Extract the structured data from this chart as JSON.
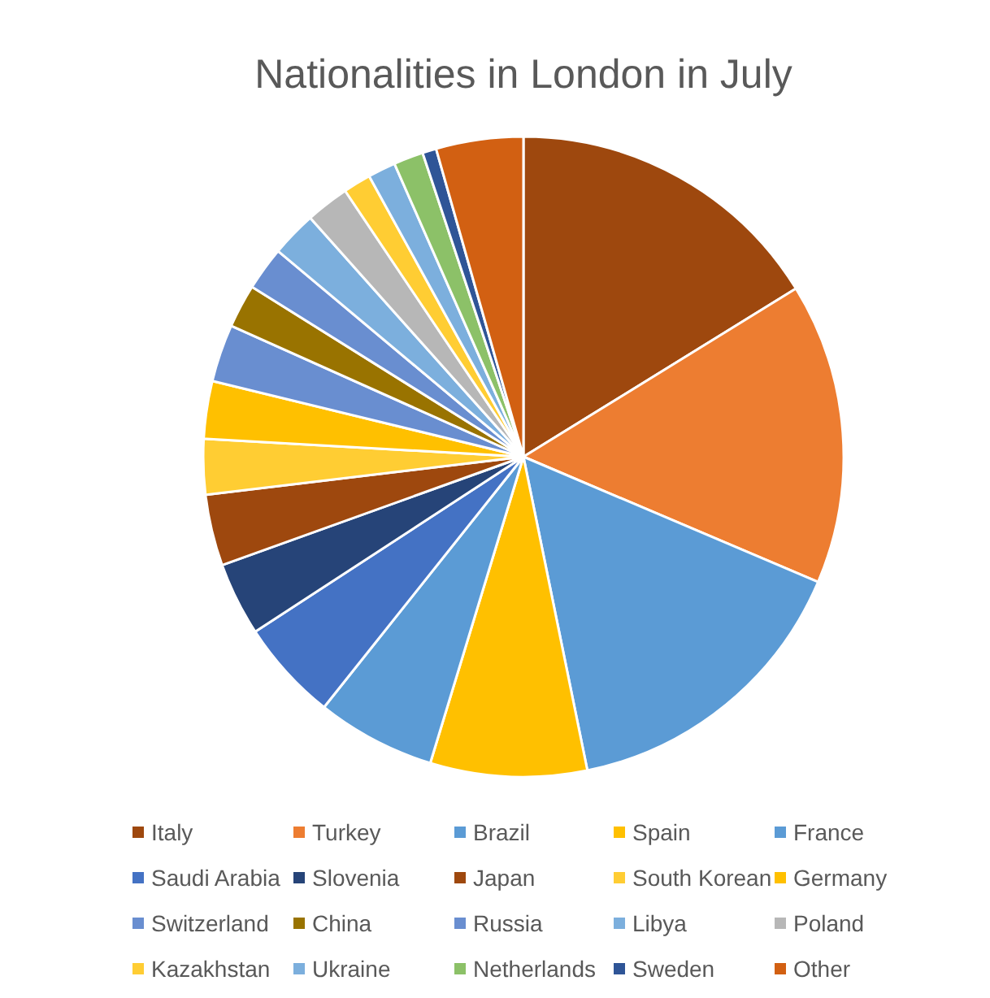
{
  "chart_data": {
    "type": "pie",
    "title": "Nationalities in London in July",
    "categories": [
      "Italy",
      "Turkey",
      "Brazil",
      "Spain",
      "France",
      "Saudi Arabia",
      "Slovenia",
      "Japan",
      "South Korean",
      "Germany",
      "Switzerland",
      "China",
      "Russia",
      "Libya",
      "Poland",
      "Kazakhstan",
      "Ukraine",
      "Netherlands",
      "Sweden",
      "Other"
    ],
    "values": [
      16.2,
      15.2,
      15.4,
      7.9,
      6.0,
      5.1,
      3.7,
      3.6,
      2.8,
      2.9,
      2.9,
      2.2,
      2.2,
      2.3,
      2.2,
      1.4,
      1.4,
      1.5,
      0.7,
      4.4
    ],
    "colors": [
      "#9e480e",
      "#ed7d31",
      "#5b9bd5",
      "#ffc000",
      "#5b9bd5",
      "#4472c4",
      "#264478",
      "#9e480e",
      "#ffcd33",
      "#ffc000",
      "#698ed0",
      "#997300",
      "#698ed0",
      "#7cafdd",
      "#b7b7b7",
      "#ffcd33",
      "#7cafdd",
      "#8cc168",
      "#2f5597",
      "#d26012"
    ],
    "legend": "bottom"
  }
}
